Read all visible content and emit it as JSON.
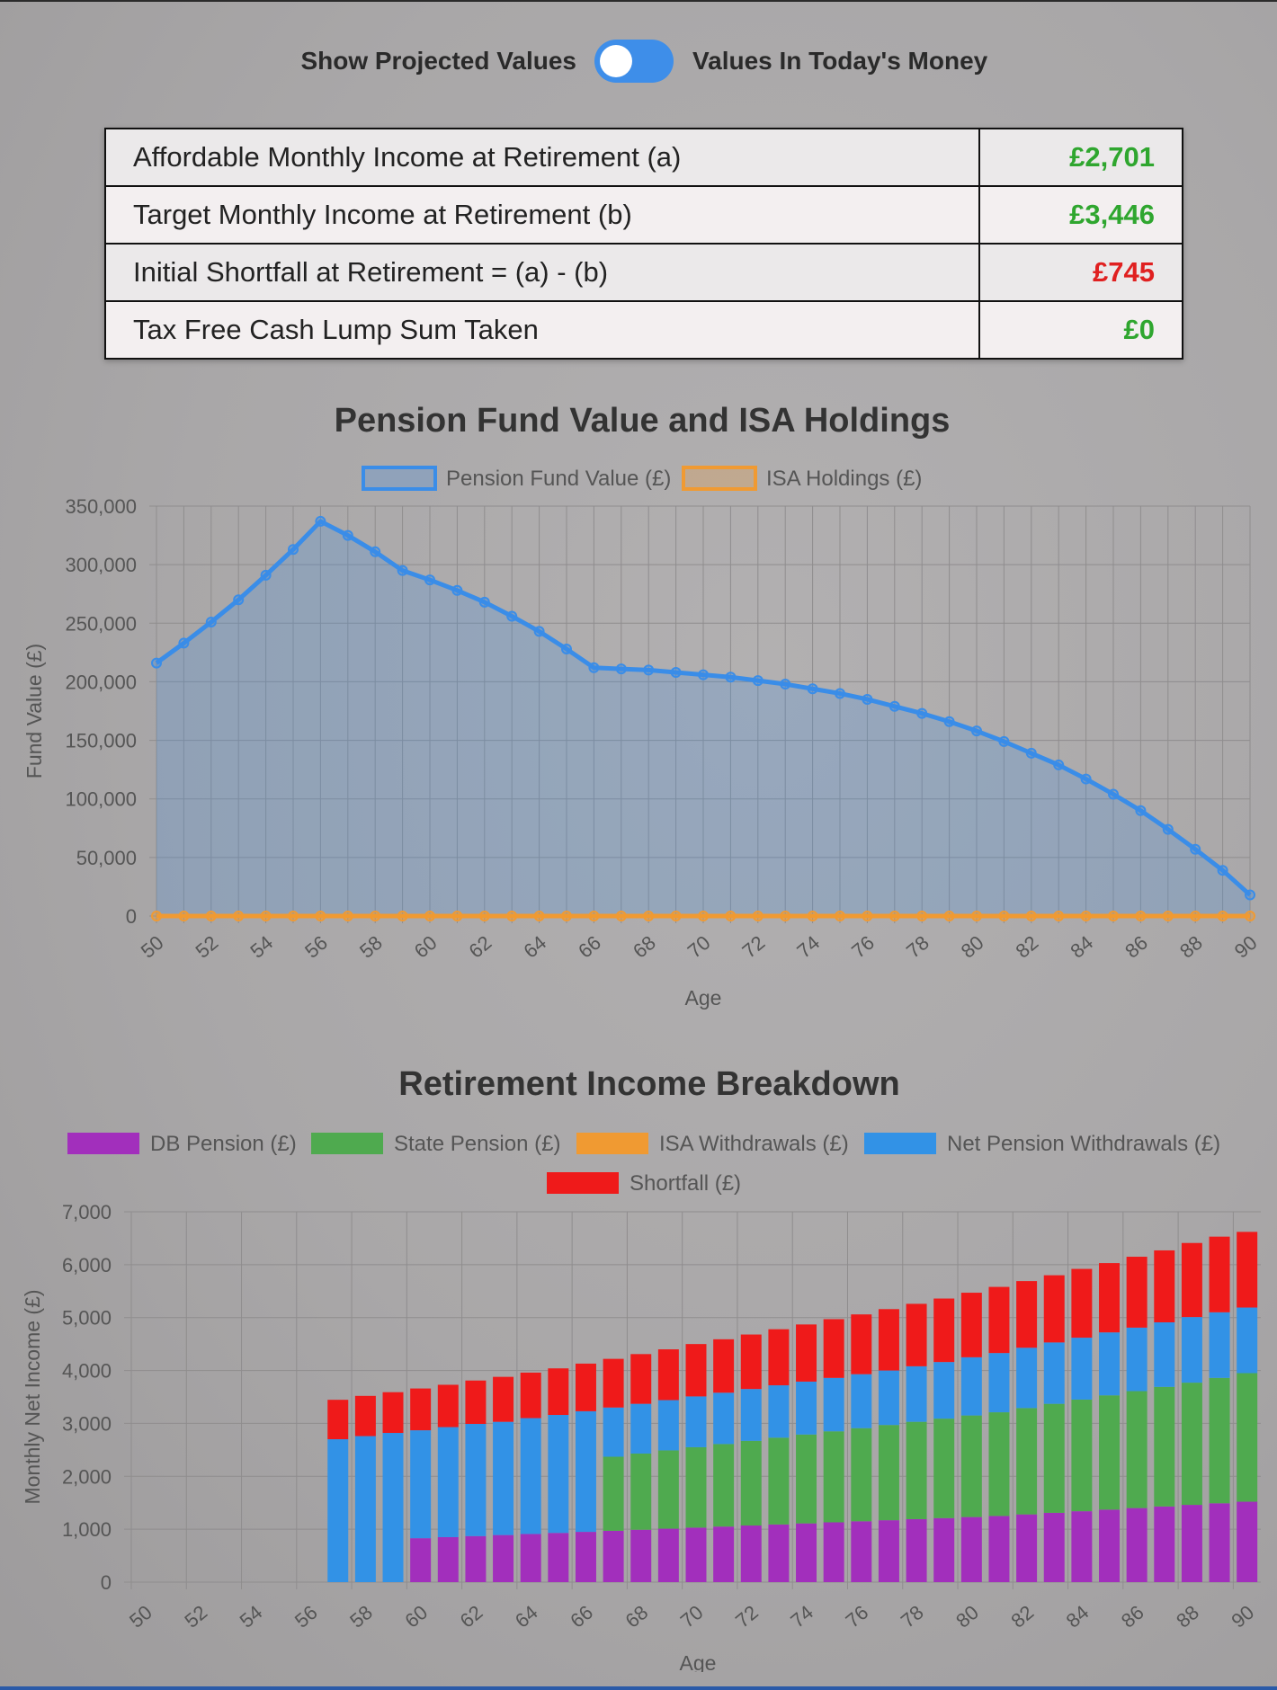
{
  "toggle": {
    "left_label": "Show Projected Values",
    "right_label": "Values In Today's Money"
  },
  "summary": [
    {
      "label": "Affordable Monthly Income at Retirement (a)",
      "value": "£2,701",
      "color": "#2fa62f"
    },
    {
      "label": "Target Monthly Income at Retirement (b)",
      "value": "£3,446",
      "color": "#2fa62f"
    },
    {
      "label": "Initial Shortfall at Retirement = (a) - (b)",
      "value": "£745",
      "color": "#e02020"
    },
    {
      "label": "Tax Free Cash Lump Sum Taken",
      "value": "£0",
      "color": "#2fa62f"
    }
  ],
  "chart_data": [
    {
      "type": "line",
      "title": "Pension Fund Value and ISA Holdings",
      "xlabel": "Age",
      "ylabel": "Fund Value (£)",
      "ylim": [
        0,
        350000
      ],
      "yticks": [
        "0",
        "50,000",
        "100,000",
        "150,000",
        "200,000",
        "250,000",
        "300,000",
        "350,000"
      ],
      "xtick_labels": [
        "50",
        "52",
        "54",
        "56",
        "58",
        "60",
        "62",
        "64",
        "66",
        "68",
        "70",
        "72",
        "74",
        "76",
        "78",
        "80",
        "82",
        "84",
        "86",
        "88",
        "90"
      ],
      "legend_position": "top",
      "grid": true,
      "x": [
        50,
        51,
        52,
        53,
        54,
        55,
        56,
        57,
        58,
        59,
        60,
        61,
        62,
        63,
        64,
        65,
        66,
        67,
        68,
        69,
        70,
        71,
        72,
        73,
        74,
        75,
        76,
        77,
        78,
        79,
        80,
        81,
        82,
        83,
        84,
        85,
        86,
        87,
        88,
        89,
        90
      ],
      "series": [
        {
          "name": "Pension Fund Value (£)",
          "color": "#3a8de8",
          "values": [
            216000,
            233000,
            251000,
            270000,
            291000,
            313000,
            337000,
            325000,
            311000,
            295000,
            287000,
            278000,
            268000,
            256000,
            243000,
            228000,
            212000,
            211000,
            210000,
            208000,
            206000,
            204000,
            201000,
            198000,
            194000,
            190000,
            185000,
            179000,
            173000,
            166000,
            158000,
            149000,
            139000,
            129000,
            117000,
            104000,
            90000,
            74000,
            57000,
            39000,
            18000
          ]
        },
        {
          "name": "ISA Holdings (£)",
          "color": "#f09a32",
          "values": [
            0,
            0,
            0,
            0,
            0,
            0,
            0,
            0,
            0,
            0,
            0,
            0,
            0,
            0,
            0,
            0,
            0,
            0,
            0,
            0,
            0,
            0,
            0,
            0,
            0,
            0,
            0,
            0,
            0,
            0,
            0,
            0,
            0,
            0,
            0,
            0,
            0,
            0,
            0,
            0,
            0
          ]
        }
      ]
    },
    {
      "type": "bar",
      "stacked": true,
      "title": "Retirement Income Breakdown",
      "xlabel": "Age",
      "ylabel": "Monthly Net Income (£)",
      "ylim": [
        0,
        7000
      ],
      "yticks": [
        "0",
        "1,000",
        "2,000",
        "3,000",
        "4,000",
        "5,000",
        "6,000",
        "7,000"
      ],
      "xtick_labels": [
        "50",
        "52",
        "54",
        "56",
        "58",
        "60",
        "62",
        "64",
        "66",
        "68",
        "70",
        "72",
        "74",
        "76",
        "78",
        "80",
        "82",
        "84",
        "86",
        "88",
        "90"
      ],
      "legend_position": "top",
      "grid": true,
      "categories": [
        50,
        51,
        52,
        53,
        54,
        55,
        56,
        57,
        58,
        59,
        60,
        61,
        62,
        63,
        64,
        65,
        66,
        67,
        68,
        69,
        70,
        71,
        72,
        73,
        74,
        75,
        76,
        77,
        78,
        79,
        80,
        81,
        82,
        83,
        84,
        85,
        86,
        87,
        88,
        89,
        90
      ],
      "series": [
        {
          "name": "DB Pension (£)",
          "color": "#a22fbc",
          "values": [
            0,
            0,
            0,
            0,
            0,
            0,
            0,
            0,
            0,
            0,
            830,
            850,
            870,
            890,
            910,
            930,
            950,
            970,
            990,
            1010,
            1030,
            1050,
            1070,
            1090,
            1110,
            1130,
            1150,
            1170,
            1190,
            1210,
            1230,
            1250,
            1280,
            1310,
            1340,
            1370,
            1400,
            1430,
            1460,
            1490,
            1520
          ]
        },
        {
          "name": "State Pension (£)",
          "color": "#4faa4f",
          "values": [
            0,
            0,
            0,
            0,
            0,
            0,
            0,
            0,
            0,
            0,
            0,
            0,
            0,
            0,
            0,
            0,
            0,
            1400,
            1440,
            1480,
            1520,
            1560,
            1600,
            1640,
            1680,
            1720,
            1760,
            1800,
            1840,
            1880,
            1920,
            1960,
            2010,
            2060,
            2110,
            2160,
            2210,
            2260,
            2310,
            2370,
            2430
          ]
        },
        {
          "name": "ISA Withdrawals (£)",
          "color": "#f09a32",
          "values": [
            0,
            0,
            0,
            0,
            0,
            0,
            0,
            0,
            0,
            0,
            0,
            0,
            0,
            0,
            0,
            0,
            0,
            0,
            0,
            0,
            0,
            0,
            0,
            0,
            0,
            0,
            0,
            0,
            0,
            0,
            0,
            0,
            0,
            0,
            0,
            0,
            0,
            0,
            0,
            0,
            0
          ]
        },
        {
          "name": "Net Pension Withdrawals (£)",
          "color": "#3292e6",
          "values": [
            0,
            0,
            0,
            0,
            0,
            0,
            0,
            2701,
            2760,
            2820,
            2040,
            2080,
            2120,
            2140,
            2190,
            2230,
            2280,
            930,
            940,
            950,
            960,
            970,
            980,
            990,
            1000,
            1010,
            1020,
            1030,
            1050,
            1070,
            1100,
            1120,
            1140,
            1160,
            1170,
            1190,
            1200,
            1220,
            1240,
            1240,
            1240
          ]
        },
        {
          "name": "Shortfall (£)",
          "color": "#ef1a1a",
          "values": [
            0,
            0,
            0,
            0,
            0,
            0,
            0,
            745,
            760,
            770,
            790,
            800,
            820,
            850,
            860,
            880,
            900,
            920,
            940,
            960,
            990,
            1010,
            1030,
            1060,
            1080,
            1110,
            1130,
            1160,
            1180,
            1200,
            1220,
            1250,
            1260,
            1270,
            1300,
            1310,
            1340,
            1360,
            1400,
            1430,
            1430
          ]
        }
      ]
    }
  ]
}
